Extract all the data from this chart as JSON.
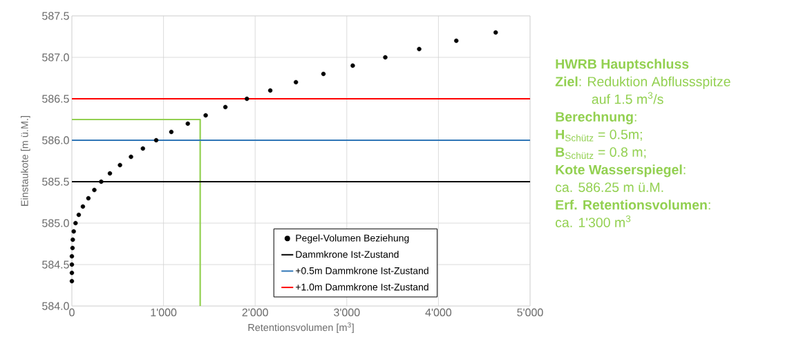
{
  "chart_data": {
    "type": "scatter",
    "xlabel": "Retentionsvolumen [m$^{3}$]",
    "ylabel": "Einstaukote [m ü.M.]",
    "xlim": [
      0,
      5000
    ],
    "ylim": [
      584,
      587.5
    ],
    "xticks": [
      0,
      {
        "value": 1000,
        "label": "1'000"
      },
      {
        "value": 2000,
        "label": "2'000"
      },
      {
        "value": 3000,
        "label": "3'000"
      },
      {
        "value": 4000,
        "label": "4'000"
      },
      {
        "value": 5000,
        "label": "5'000"
      }
    ],
    "yticks": [
      {
        "value": 584,
        "label": "584.0"
      },
      584.5,
      {
        "value": 585,
        "label": "585.0"
      },
      585.5,
      {
        "value": 586,
        "label": "586.0"
      },
      586.5,
      {
        "value": 587,
        "label": "587.0"
      },
      587.5
    ],
    "grid": true,
    "legend": "bottom right",
    "marker": "circle",
    "series": [
      {
        "name": "Pegel-Volumen Beziehung",
        "color": "#000000",
        "x": [
          0,
          0,
          0,
          0,
          7,
          10,
          20,
          40,
          75,
          120,
          180,
          245,
          320,
          415,
          525,
          645,
          775,
          920,
          1085,
          1265,
          1460,
          1675,
          1910,
          2165,
          2445,
          2745,
          3065,
          3420,
          3790,
          4195,
          4625
        ],
        "values": [
          584.3,
          584.4,
          584.5,
          584.6,
          584.7,
          584.8,
          584.9,
          585.0,
          585.1,
          585.2,
          585.3,
          585.4,
          585.5,
          585.6,
          585.7,
          585.8,
          585.9,
          586.0,
          586.1,
          586.2,
          586.3,
          586.4,
          586.5,
          586.6,
          586.7,
          586.8,
          586.9,
          587.0,
          587.1,
          587.2,
          587.3
        ]
      },
      {
        "type": "line",
        "marker": "none",
        "color": "#92d050",
        "x": [
          0,
          1400,
          1400
        ],
        "values": [
          586.25,
          586.25,
          584
        ]
      }
    ],
    "ref_lines": [
      {
        "axis": "y",
        "value": 585.5,
        "label": "Dammkrone Ist-Zustand",
        "color": "#000000"
      },
      {
        "axis": "y",
        "value": 586,
        "label": "+0.5m Dammkrone Ist-Zustand",
        "color": "#2e75b6"
      },
      {
        "axis": "y",
        "value": 586.5,
        "label": "+1.0m Dammkrone Ist-Zustand",
        "color": "#ff0000"
      }
    ],
    "annotations": [
      "**HWRB Hauptschluss**",
      "**Ziel**: Reduktion Abflussspitze auf 1.5 m$^{3}$/s",
      "**Berechnung**:",
      "**H**$_{Schütz}$ = 0.5m;",
      "**B**$_{Schütz}$ = 0.8 m;",
      "**Kote Wasserspiegel**:",
      "ca. 586.25 m ü.M.",
      "**Erf. Retentionsvolumen**:",
      "ca. 1'300 m$^{3}$"
    ]
  }
}
